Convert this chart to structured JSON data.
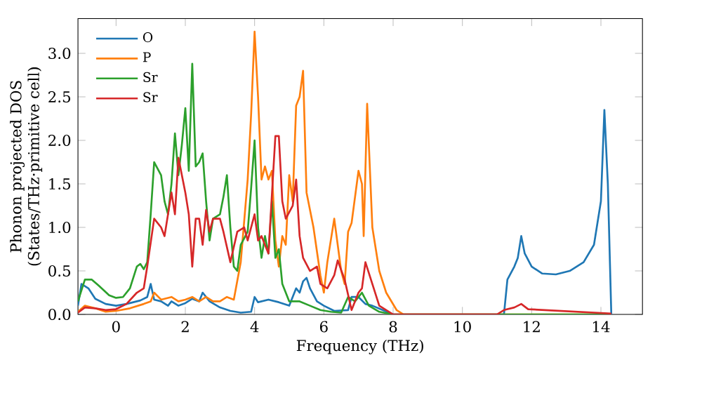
{
  "chart_data": {
    "type": "line",
    "xlabel": "Frequency (THz)",
    "ylabel": "Phonon projected DOS\n(States/THz·primitive cell)",
    "xlim": [
      -1.1,
      15.2
    ],
    "ylim": [
      0,
      3.4
    ],
    "xticks": [
      0,
      2,
      4,
      6,
      8,
      10,
      12,
      14
    ],
    "yticks": [
      {
        "value": 0,
        "label": "0.0"
      },
      {
        "value": 0.5,
        "label": "0.5"
      },
      {
        "value": 1,
        "label": "1.0"
      },
      {
        "value": 1.5,
        "label": "1.5"
      },
      {
        "value": 2,
        "label": "2.0"
      },
      {
        "value": 2.5,
        "label": "2.5"
      },
      {
        "value": 3,
        "label": "3.0"
      }
    ],
    "legend": "top left",
    "grid": false,
    "series": [
      {
        "name": "O",
        "color": "#1f77b4",
        "x": [
          -1.1,
          -1.0,
          -0.8,
          -0.6,
          -0.3,
          0,
          0.3,
          0.7,
          0.9,
          1.0,
          1.1,
          1.3,
          1.5,
          1.6,
          1.8,
          2.0,
          2.2,
          2.4,
          2.5,
          2.7,
          3.0,
          3.3,
          3.6,
          3.9,
          4.0,
          4.1,
          4.4,
          4.7,
          5.0,
          5.2,
          5.3,
          5.4,
          5.5,
          5.6,
          5.8,
          6.0,
          6.3,
          6.7,
          6.8,
          7.0,
          7.2,
          7.4,
          7.7,
          8.0,
          11.2,
          11.3,
          11.5,
          11.6,
          11.7,
          11.8,
          12.0,
          12.3,
          12.7,
          13.1,
          13.5,
          13.8,
          14.0,
          14.1,
          14.2,
          14.3
        ],
        "values": [
          0.1,
          0.35,
          0.3,
          0.18,
          0.12,
          0.1,
          0.12,
          0.16,
          0.2,
          0.35,
          0.17,
          0.15,
          0.1,
          0.15,
          0.1,
          0.13,
          0.18,
          0.15,
          0.25,
          0.15,
          0.08,
          0.04,
          0.02,
          0.03,
          0.2,
          0.14,
          0.17,
          0.14,
          0.1,
          0.3,
          0.25,
          0.38,
          0.42,
          0.3,
          0.15,
          0.1,
          0.04,
          0.05,
          0.2,
          0.2,
          0.12,
          0.1,
          0.05,
          0,
          0,
          0.4,
          0.55,
          0.65,
          0.9,
          0.7,
          0.55,
          0.47,
          0.46,
          0.5,
          0.6,
          0.8,
          1.3,
          2.35,
          1.5,
          0
        ]
      },
      {
        "name": "P",
        "color": "#ff7f0e",
        "x": [
          -1.1,
          -0.9,
          -0.6,
          -0.3,
          0,
          0.4,
          0.8,
          1.0,
          1.1,
          1.3,
          1.6,
          1.8,
          2.0,
          2.2,
          2.4,
          2.6,
          2.8,
          3.0,
          3.2,
          3.4,
          3.6,
          3.8,
          3.9,
          4.0,
          4.1,
          4.2,
          4.3,
          4.4,
          4.5,
          4.6,
          4.7,
          4.8,
          4.9,
          5.0,
          5.1,
          5.2,
          5.3,
          5.4,
          5.5,
          5.7,
          5.9,
          6.0,
          6.1,
          6.3,
          6.4,
          6.5,
          6.6,
          6.7,
          6.8,
          6.9,
          7.0,
          7.1,
          7.15,
          7.25,
          7.4,
          7.6,
          7.8,
          8.1,
          8.3,
          14.3
        ],
        "values": [
          0.03,
          0.1,
          0.07,
          0.03,
          0.04,
          0.07,
          0.12,
          0.15,
          0.25,
          0.17,
          0.2,
          0.15,
          0.17,
          0.2,
          0.15,
          0.2,
          0.15,
          0.15,
          0.2,
          0.17,
          0.6,
          1.55,
          2.3,
          3.25,
          2.5,
          1.55,
          1.7,
          1.55,
          1.65,
          0.85,
          0.55,
          0.9,
          0.8,
          1.6,
          1.3,
          2.4,
          2.5,
          2.8,
          1.4,
          1.0,
          0.45,
          0.25,
          0.6,
          1.1,
          0.8,
          0.5,
          0.35,
          0.95,
          1.05,
          1.35,
          1.65,
          1.5,
          0.9,
          2.42,
          1.0,
          0.5,
          0.25,
          0.05,
          0,
          0
        ]
      },
      {
        "name": "Sr",
        "color": "#2ca02c",
        "x": [
          -1.1,
          -0.9,
          -0.7,
          -0.5,
          -0.2,
          0,
          0.2,
          0.4,
          0.6,
          0.7,
          0.8,
          0.9,
          1.0,
          1.1,
          1.3,
          1.4,
          1.5,
          1.6,
          1.7,
          1.8,
          1.9,
          2.0,
          2.1,
          2.2,
          2.3,
          2.4,
          2.5,
          2.6,
          2.7,
          2.8,
          3.0,
          3.1,
          3.2,
          3.3,
          3.4,
          3.5,
          3.6,
          3.8,
          3.9,
          4.0,
          4.1,
          4.2,
          4.3,
          4.4,
          4.5,
          4.6,
          4.7,
          4.8,
          5.0,
          5.3,
          5.6,
          5.9,
          6.2,
          6.5,
          6.7,
          6.9,
          7.1,
          7.3,
          7.6,
          8.0,
          14.3
        ],
        "values": [
          0.15,
          0.4,
          0.4,
          0.33,
          0.22,
          0.19,
          0.2,
          0.3,
          0.55,
          0.58,
          0.52,
          0.6,
          1.15,
          1.75,
          1.6,
          1.3,
          1.15,
          1.5,
          2.08,
          1.6,
          1.95,
          2.37,
          1.65,
          2.88,
          1.7,
          1.75,
          1.85,
          1.3,
          0.85,
          1.1,
          1.15,
          1.35,
          1.6,
          1.0,
          0.55,
          0.5,
          0.8,
          0.95,
          1.45,
          2.0,
          1.0,
          0.65,
          0.9,
          0.7,
          1.3,
          0.65,
          0.75,
          0.35,
          0.15,
          0.15,
          0.1,
          0.05,
          0.03,
          0.02,
          0.2,
          0.15,
          0.25,
          0.1,
          0.03,
          0,
          0
        ]
      },
      {
        "name": "Sr",
        "color": "#d62728",
        "x": [
          -1.1,
          -0.9,
          -0.6,
          -0.3,
          0,
          0.3,
          0.6,
          0.8,
          0.9,
          1.1,
          1.3,
          1.4,
          1.6,
          1.7,
          1.8,
          2.0,
          2.1,
          2.2,
          2.3,
          2.4,
          2.5,
          2.6,
          2.7,
          2.8,
          3.0,
          3.1,
          3.3,
          3.5,
          3.7,
          3.8,
          4.0,
          4.1,
          4.2,
          4.4,
          4.6,
          4.7,
          4.8,
          4.9,
          5.1,
          5.2,
          5.3,
          5.4,
          5.6,
          5.8,
          5.9,
          6.1,
          6.3,
          6.4,
          6.6,
          6.8,
          7.0,
          7.1,
          7.2,
          7.4,
          7.6,
          8.0,
          11.0,
          11.2,
          11.5,
          11.7,
          11.9,
          14.3
        ],
        "values": [
          0.02,
          0.08,
          0.07,
          0.05,
          0.06,
          0.12,
          0.25,
          0.3,
          0.55,
          1.1,
          1.0,
          0.9,
          1.4,
          1.15,
          1.8,
          1.4,
          1.15,
          0.55,
          1.1,
          1.1,
          0.8,
          1.2,
          0.95,
          1.1,
          1.1,
          0.95,
          0.6,
          0.95,
          1.0,
          0.85,
          1.15,
          0.85,
          0.9,
          0.7,
          2.05,
          2.05,
          1.3,
          1.1,
          1.25,
          1.55,
          0.9,
          0.65,
          0.5,
          0.55,
          0.35,
          0.3,
          0.45,
          0.62,
          0.4,
          0.05,
          0.25,
          0.3,
          0.6,
          0.35,
          0.1,
          0,
          0,
          0.05,
          0.08,
          0.12,
          0.06,
          0.01
        ]
      }
    ]
  }
}
